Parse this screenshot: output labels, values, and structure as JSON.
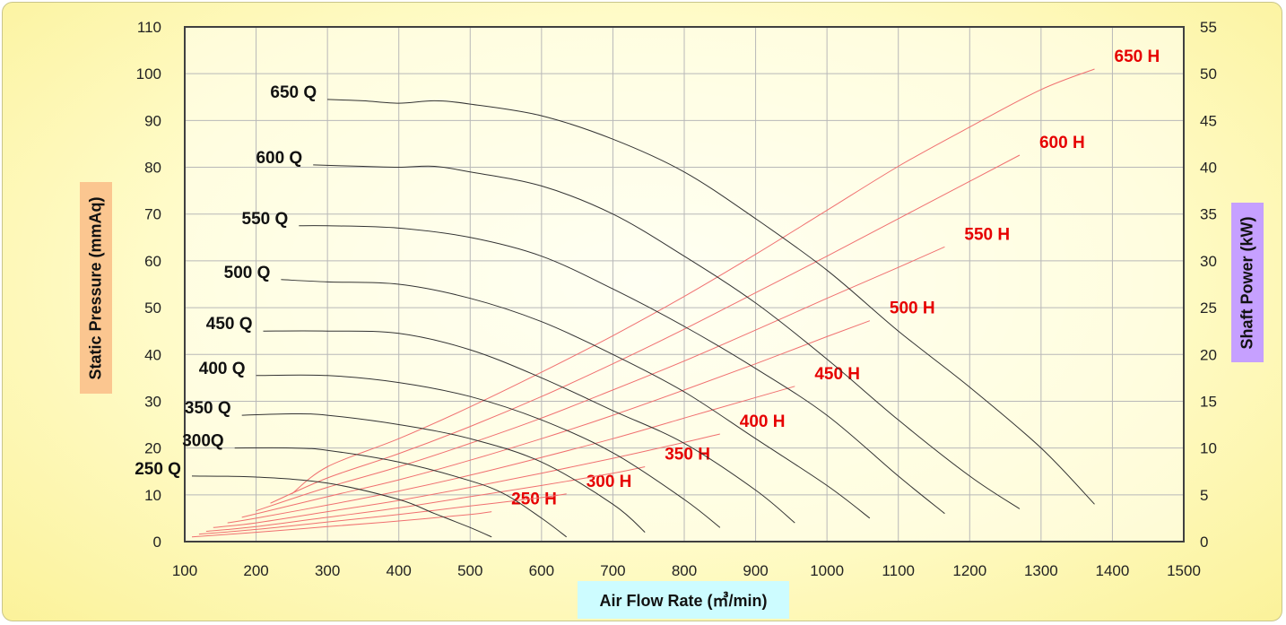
{
  "chart_data": {
    "type": "line",
    "title": "",
    "xlabel": "Air Flow Rate (㎥/min)",
    "ylabel": "Static Pressure (mmAq)",
    "y2label": "Shaft Power (kW)",
    "xlim": [
      100,
      1500
    ],
    "ylim": [
      0,
      110
    ],
    "y2lim": [
      0,
      55
    ],
    "x_ticks": [
      "100",
      "200",
      "300",
      "400",
      "500",
      "600",
      "700",
      "800",
      "900",
      "1000",
      "1100",
      "1200",
      "1300",
      "1400",
      "1500"
    ],
    "y_ticks": [
      "0",
      "10",
      "20",
      "30",
      "40",
      "50",
      "60",
      "70",
      "80",
      "90",
      "100",
      "110"
    ],
    "y2_ticks": [
      "0",
      "5",
      "10",
      "15",
      "20",
      "25",
      "30",
      "35",
      "40",
      "45",
      "50",
      "55"
    ],
    "grid": true,
    "pressure_series": [
      {
        "name": "250 Q",
        "x": [
          110,
          200,
          300,
          400,
          450,
          500,
          530
        ],
        "y": [
          14,
          13.8,
          12.5,
          9,
          6,
          3,
          1
        ]
      },
      {
        "name": "300Q",
        "x": [
          170,
          250,
          300,
          400,
          500,
          550,
          600,
          635
        ],
        "y": [
          20,
          20,
          19.5,
          17,
          13,
          10,
          5,
          1
        ]
      },
      {
        "name": "350 Q",
        "x": [
          180,
          250,
          300,
          400,
          500,
          600,
          700,
          745
        ],
        "y": [
          27,
          27.3,
          27,
          25,
          22,
          17,
          8,
          2
        ]
      },
      {
        "name": "400 Q",
        "x": [
          200,
          300,
          400,
          500,
          600,
          700,
          800,
          850
        ],
        "y": [
          35.5,
          35.5,
          34,
          31,
          26,
          19,
          9,
          3
        ]
      },
      {
        "name": "450 Q",
        "x": [
          210,
          300,
          400,
          500,
          600,
          700,
          800,
          900,
          955
        ],
        "y": [
          45,
          45,
          44.5,
          41,
          35,
          28,
          21,
          11,
          4
        ]
      },
      {
        "name": "500 Q",
        "x": [
          235,
          300,
          400,
          500,
          600,
          700,
          800,
          900,
          1000,
          1060
        ],
        "y": [
          56,
          55.5,
          55,
          52,
          47,
          40,
          32,
          22,
          12,
          5
        ]
      },
      {
        "name": "550 Q",
        "x": [
          260,
          300,
          400,
          500,
          600,
          700,
          800,
          900,
          1000,
          1100,
          1165
        ],
        "y": [
          67.5,
          67.5,
          67,
          65,
          61,
          54,
          46,
          37,
          27,
          14,
          6
        ]
      },
      {
        "name": "600 Q",
        "x": [
          280,
          350,
          400,
          450,
          500,
          600,
          700,
          800,
          900,
          1000,
          1100,
          1200,
          1270
        ],
        "y": [
          80.5,
          80.2,
          80,
          80.2,
          79,
          76,
          70,
          61,
          51,
          39,
          26,
          14,
          7
        ]
      },
      {
        "name": "650 Q",
        "x": [
          300,
          350,
          400,
          450,
          500,
          600,
          700,
          800,
          900,
          1000,
          1100,
          1200,
          1300,
          1375
        ],
        "y": [
          94.5,
          94.2,
          93.7,
          94.2,
          93.5,
          91,
          86,
          79,
          69,
          58,
          45,
          33,
          20,
          8
        ]
      }
    ],
    "power_series": [
      {
        "name": "250 H",
        "x": [
          110,
          200,
          300,
          400,
          500,
          530
        ],
        "y": [
          0.5,
          1,
          1.6,
          2.2,
          2.9,
          3.2
        ]
      },
      {
        "name": "300 H",
        "x": [
          120,
          200,
          300,
          400,
          500,
          600,
          635
        ],
        "y": [
          0.8,
          1.3,
          2.1,
          2.9,
          3.8,
          4.7,
          5.1
        ]
      },
      {
        "name": "350 H",
        "x": [
          130,
          200,
          300,
          400,
          500,
          600,
          700,
          745
        ],
        "y": [
          1.1,
          1.6,
          2.6,
          3.6,
          4.8,
          6,
          7.3,
          8
        ]
      },
      {
        "name": "400 H",
        "x": [
          140,
          200,
          300,
          400,
          500,
          600,
          700,
          800,
          850
        ],
        "y": [
          1.5,
          2,
          3.2,
          4.4,
          5.8,
          7.3,
          8.9,
          10.6,
          11.5
        ]
      },
      {
        "name": "450 H",
        "x": [
          160,
          200,
          300,
          400,
          500,
          600,
          700,
          800,
          900,
          955
        ],
        "y": [
          2,
          2.5,
          3.9,
          5.4,
          7.1,
          9,
          11,
          13.2,
          15.4,
          16.6
        ]
      },
      {
        "name": "500 H",
        "x": [
          180,
          300,
          400,
          500,
          600,
          700,
          800,
          900,
          1000,
          1060
        ],
        "y": [
          2.6,
          4.8,
          6.6,
          8.7,
          11,
          13.5,
          16.2,
          19,
          21.9,
          23.6
        ]
      },
      {
        "name": "550 H",
        "x": [
          200,
          300,
          400,
          500,
          600,
          700,
          800,
          900,
          1000,
          1100,
          1165
        ],
        "y": [
          3.3,
          5.8,
          8,
          10.5,
          13.2,
          16.2,
          19.3,
          22.6,
          26,
          29.3,
          31.5
        ]
      },
      {
        "name": "600 H",
        "x": [
          220,
          300,
          400,
          500,
          600,
          700,
          800,
          900,
          1000,
          1100,
          1200,
          1270
        ],
        "y": [
          4.1,
          6.8,
          9.4,
          12.3,
          15.5,
          19,
          22.7,
          26.6,
          30.5,
          34.5,
          38.5,
          41.3
        ]
      },
      {
        "name": "650 H",
        "x": [
          250,
          300,
          400,
          500,
          600,
          700,
          800,
          900,
          1000,
          1100,
          1200,
          1300,
          1375
        ],
        "y": [
          5.1,
          8,
          11,
          14.4,
          18.1,
          22,
          26.2,
          30.7,
          35.4,
          40.1,
          44.3,
          48.3,
          50.5
        ]
      }
    ],
    "label_positions_note_removed": true
  }
}
